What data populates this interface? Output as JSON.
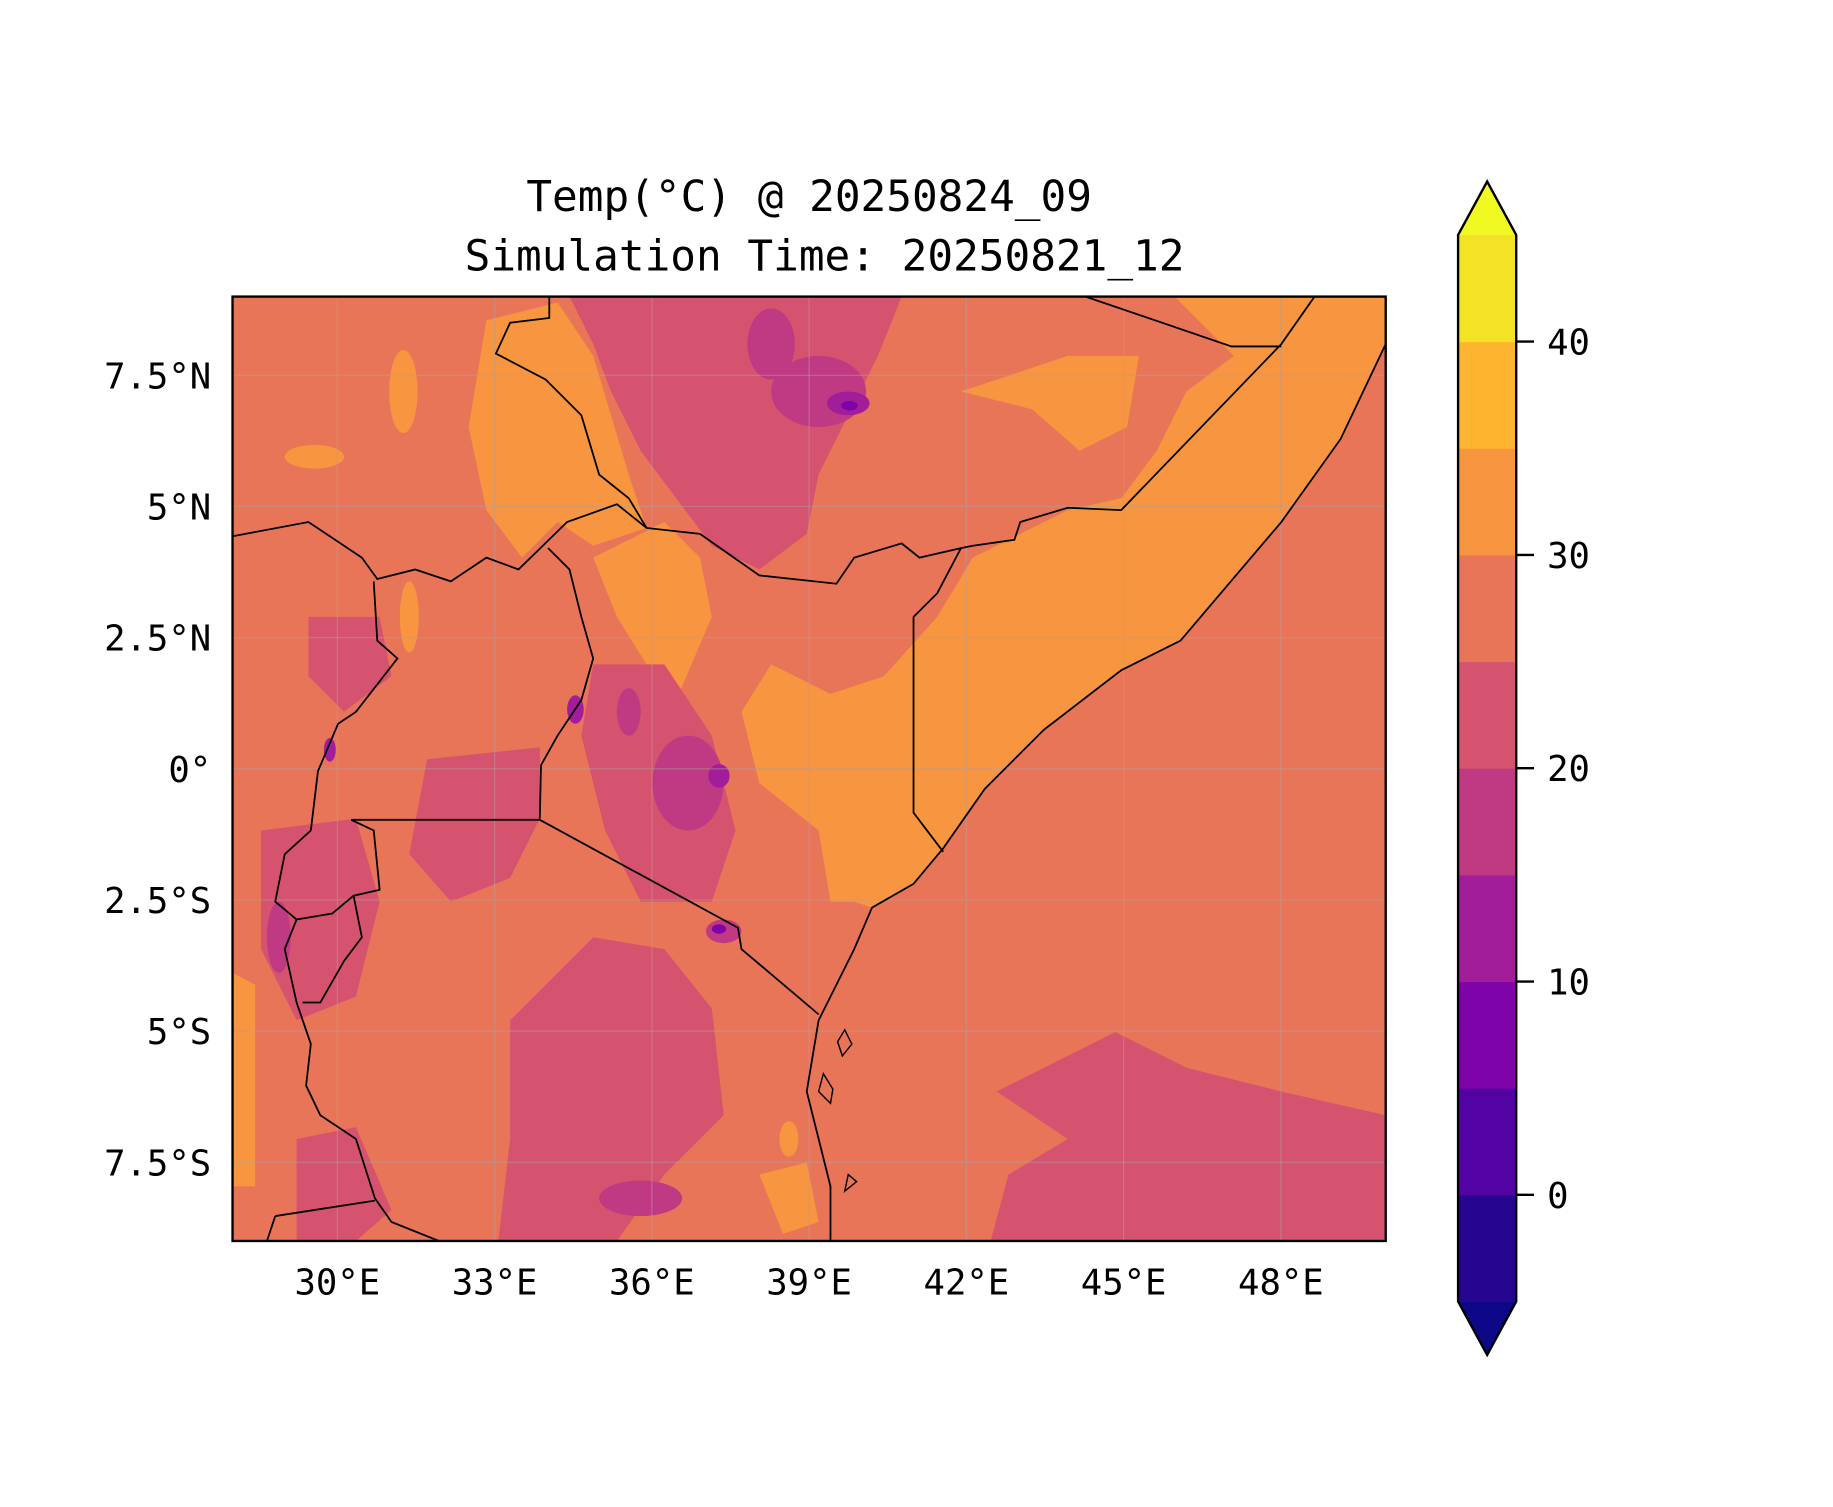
{
  "chart_data": {
    "type": "heatmap",
    "title_line1": "Temp(°C) @ 20250824_09",
    "title_line2": "Simulation Time: 20250821_12",
    "xlabel": "",
    "ylabel": "",
    "extent": {
      "lon": [
        28,
        50
      ],
      "lat": [
        -9,
        9
      ]
    },
    "x_ticks": [
      {
        "value": 30,
        "label": "30°E"
      },
      {
        "value": 33,
        "label": "33°E"
      },
      {
        "value": 36,
        "label": "36°E"
      },
      {
        "value": 39,
        "label": "39°E"
      },
      {
        "value": 42,
        "label": "42°E"
      },
      {
        "value": 45,
        "label": "45°E"
      },
      {
        "value": 48,
        "label": "48°E"
      }
    ],
    "y_ticks": [
      {
        "value": 7.5,
        "label": "7.5°N"
      },
      {
        "value": 5,
        "label": "5°N"
      },
      {
        "value": 2.5,
        "label": "2.5°N"
      },
      {
        "value": 0,
        "label": "0°"
      },
      {
        "value": -2.5,
        "label": "2.5°S"
      },
      {
        "value": -5,
        "label": "5°S"
      },
      {
        "value": -7.5,
        "label": "7.5°S"
      }
    ],
    "grid": true,
    "colorbar": {
      "levels": [
        -5,
        0,
        5,
        10,
        15,
        20,
        25,
        30,
        35,
        40,
        45
      ],
      "colors": [
        "#260591",
        "#5302a3",
        "#7e03a8",
        "#a21d9a",
        "#c03a83",
        "#d5536f",
        "#e97559",
        "#f79541",
        "#fdb52f",
        "#f4e224"
      ],
      "under_color": "#0d0887",
      "over_color": "#f0f921",
      "extend": "both",
      "ticks": [
        {
          "value": 0,
          "label": "0"
        },
        {
          "value": 10,
          "label": "10"
        },
        {
          "value": 20,
          "label": "20"
        },
        {
          "value": 30,
          "label": "30"
        },
        {
          "value": 40,
          "label": "40"
        }
      ],
      "placement": "right"
    },
    "dominant_range_c": [
      25,
      30
    ]
  }
}
